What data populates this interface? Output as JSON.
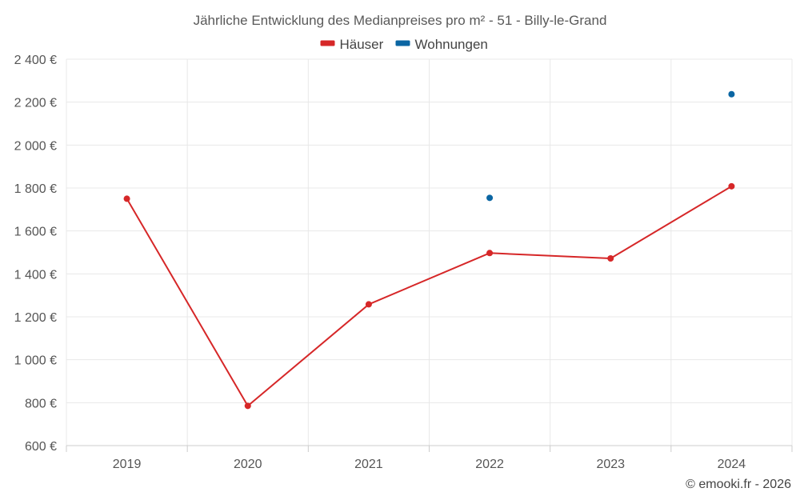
{
  "chart_data": {
    "type": "line",
    "title": "Jährliche Entwicklung des Medianpreises pro m² - 51 - Billy-le-Grand",
    "categories": [
      "2019",
      "2020",
      "2021",
      "2022",
      "2023",
      "2024"
    ],
    "ylim": [
      600,
      2400
    ],
    "yticks": [
      600,
      800,
      1000,
      1200,
      1400,
      1600,
      1800,
      2000,
      2200,
      2400
    ],
    "ytick_labels": [
      "600 €",
      "800 €",
      "1 000 €",
      "1 200 €",
      "1 400 €",
      "1 600 €",
      "1 800 €",
      "2 000 €",
      "2 200 €",
      "2 400 €"
    ],
    "series": [
      {
        "name": "Häuser",
        "color": "#d62728",
        "values": [
          1750,
          785,
          1258,
          1497,
          1472,
          1808
        ]
      },
      {
        "name": "Wohnungen",
        "color": "#0b66a3",
        "values": [
          null,
          null,
          null,
          1754,
          null,
          2237
        ]
      }
    ],
    "legend_position": "top-center",
    "grid": true
  },
  "credit": "© emooki.fr - 2026"
}
